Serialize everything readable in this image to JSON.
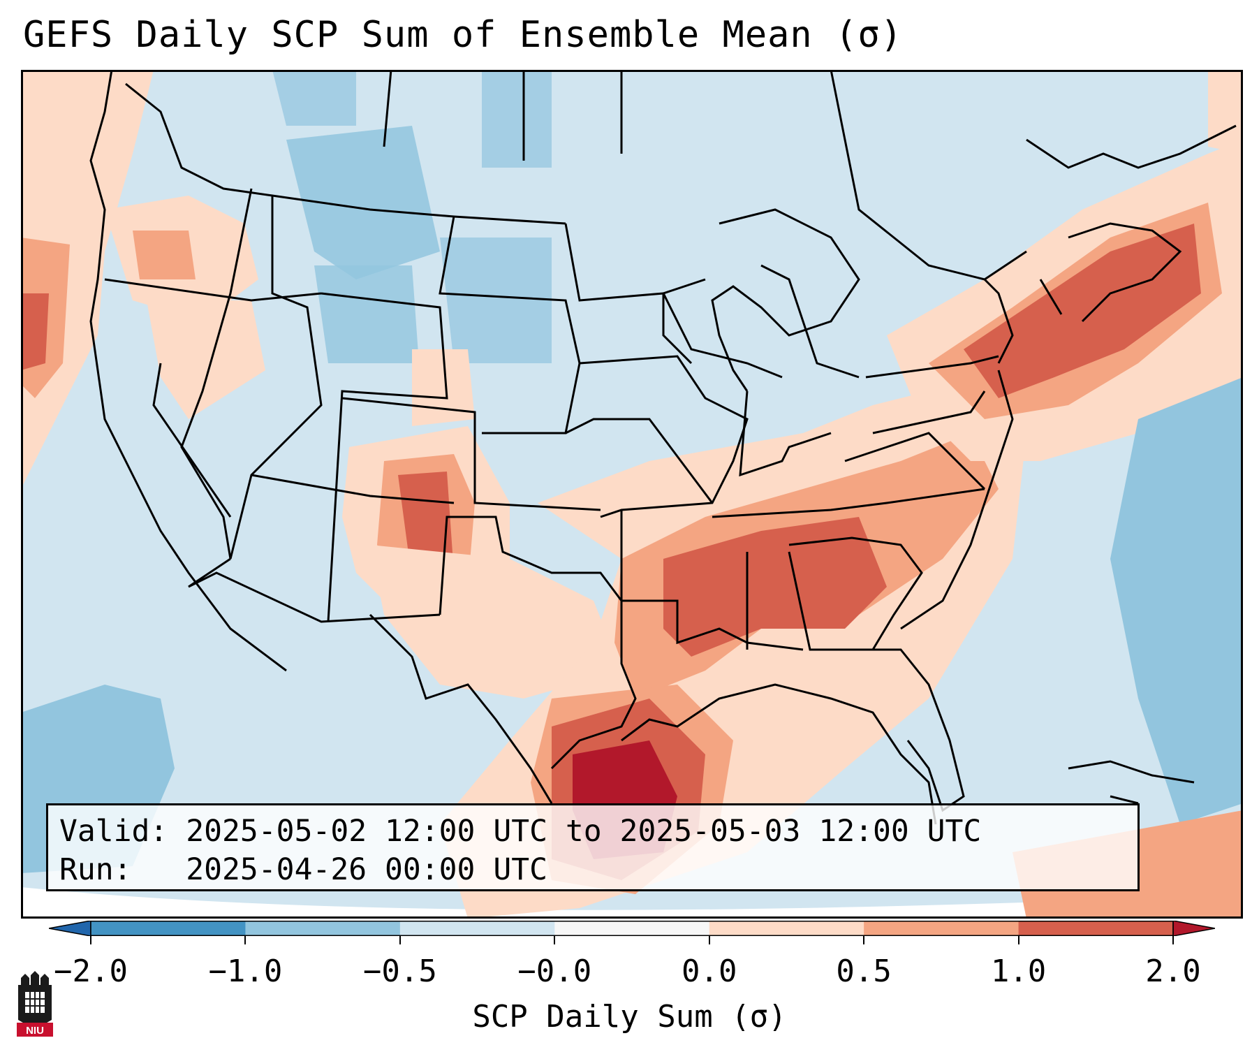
{
  "title": "GEFS Daily SCP Sum of Ensemble Mean (σ)",
  "info": {
    "valid_label": "Valid:",
    "valid_value": "2025-05-02 12:00 UTC to 2025-05-03 12:00 UTC",
    "run_label": "Run:",
    "run_value": "2025-04-26 00:00 UTC"
  },
  "colorbar": {
    "label": "SCP Daily Sum (σ)",
    "ticks": [
      "−2.0",
      "−1.0",
      "−0.5",
      "−0.0",
      "0.0",
      "0.5",
      "1.0",
      "2.0"
    ],
    "bin_colors": [
      "#4393c3",
      "#92c5de",
      "#d1e5f0",
      "#f7f7f7",
      "#fddbc7",
      "#f4a582",
      "#d6604d",
      "#b2182b"
    ],
    "extend_low_color": "#2166ac",
    "extend_high_color": "#b2182b"
  },
  "logo": {
    "name": "niu-logo",
    "text": "NIU"
  }
}
